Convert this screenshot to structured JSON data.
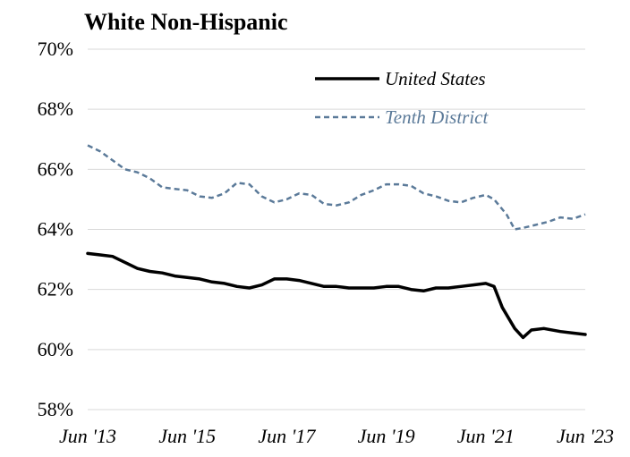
{
  "chart_data": {
    "type": "line",
    "title": "White Non-Hispanic",
    "xlabel": "",
    "ylabel": "",
    "x_ticks": [
      "Jun '13",
      "Jun '15",
      "Jun '17",
      "Jun '19",
      "Jun '21",
      "Jun '23"
    ],
    "x_range": [
      "2013-06",
      "2023-06"
    ],
    "ylim": [
      58,
      70
    ],
    "y_ticks": [
      58,
      60,
      62,
      64,
      66,
      68,
      70
    ],
    "y_tick_labels": [
      "58%",
      "60%",
      "62%",
      "64%",
      "66%",
      "68%",
      "70%"
    ],
    "grid": true,
    "legend_position": "top-right",
    "series": [
      {
        "name": "United States",
        "color": "#000000",
        "style": "solid",
        "points": [
          [
            "2013-06",
            63.2
          ],
          [
            "2013-09",
            63.15
          ],
          [
            "2013-12",
            63.1
          ],
          [
            "2014-03",
            62.9
          ],
          [
            "2014-06",
            62.7
          ],
          [
            "2014-09",
            62.6
          ],
          [
            "2014-12",
            62.55
          ],
          [
            "2015-03",
            62.45
          ],
          [
            "2015-06",
            62.4
          ],
          [
            "2015-09",
            62.35
          ],
          [
            "2015-12",
            62.25
          ],
          [
            "2016-03",
            62.2
          ],
          [
            "2016-06",
            62.1
          ],
          [
            "2016-09",
            62.05
          ],
          [
            "2016-12",
            62.15
          ],
          [
            "2017-03",
            62.35
          ],
          [
            "2017-06",
            62.35
          ],
          [
            "2017-09",
            62.3
          ],
          [
            "2017-12",
            62.2
          ],
          [
            "2018-03",
            62.1
          ],
          [
            "2018-06",
            62.1
          ],
          [
            "2018-09",
            62.05
          ],
          [
            "2018-12",
            62.05
          ],
          [
            "2019-03",
            62.05
          ],
          [
            "2019-06",
            62.1
          ],
          [
            "2019-09",
            62.1
          ],
          [
            "2019-12",
            62.0
          ],
          [
            "2020-03",
            61.95
          ],
          [
            "2020-06",
            62.05
          ],
          [
            "2020-09",
            62.05
          ],
          [
            "2020-12",
            62.1
          ],
          [
            "2021-03",
            62.15
          ],
          [
            "2021-06",
            62.2
          ],
          [
            "2021-08",
            62.1
          ],
          [
            "2021-10",
            61.4
          ],
          [
            "2022-01",
            60.7
          ],
          [
            "2022-03",
            60.4
          ],
          [
            "2022-05",
            60.65
          ],
          [
            "2022-08",
            60.7
          ],
          [
            "2022-12",
            60.6
          ],
          [
            "2023-03",
            60.55
          ],
          [
            "2023-06",
            60.5
          ]
        ]
      },
      {
        "name": "Tenth District",
        "color": "#5b7a99",
        "style": "dashed",
        "points": [
          [
            "2013-06",
            66.8
          ],
          [
            "2013-09",
            66.6
          ],
          [
            "2013-12",
            66.3
          ],
          [
            "2014-03",
            66.0
          ],
          [
            "2014-06",
            65.9
          ],
          [
            "2014-09",
            65.7
          ],
          [
            "2014-12",
            65.4
          ],
          [
            "2015-03",
            65.35
          ],
          [
            "2015-06",
            65.3
          ],
          [
            "2015-09",
            65.1
          ],
          [
            "2015-12",
            65.05
          ],
          [
            "2016-03",
            65.2
          ],
          [
            "2016-06",
            65.55
          ],
          [
            "2016-09",
            65.5
          ],
          [
            "2016-12",
            65.1
          ],
          [
            "2017-03",
            64.9
          ],
          [
            "2017-06",
            65.0
          ],
          [
            "2017-09",
            65.2
          ],
          [
            "2017-12",
            65.15
          ],
          [
            "2018-03",
            64.85
          ],
          [
            "2018-06",
            64.8
          ],
          [
            "2018-09",
            64.9
          ],
          [
            "2018-12",
            65.15
          ],
          [
            "2019-03",
            65.3
          ],
          [
            "2019-06",
            65.5
          ],
          [
            "2019-09",
            65.5
          ],
          [
            "2019-12",
            65.45
          ],
          [
            "2020-03",
            65.2
          ],
          [
            "2020-06",
            65.1
          ],
          [
            "2020-09",
            64.95
          ],
          [
            "2020-12",
            64.9
          ],
          [
            "2021-03",
            65.05
          ],
          [
            "2021-06",
            65.15
          ],
          [
            "2021-08",
            65.0
          ],
          [
            "2021-11",
            64.5
          ],
          [
            "2022-01",
            64.0
          ],
          [
            "2022-03",
            64.05
          ],
          [
            "2022-06",
            64.15
          ],
          [
            "2022-09",
            64.25
          ],
          [
            "2022-12",
            64.4
          ],
          [
            "2023-03",
            64.35
          ],
          [
            "2023-06",
            64.5
          ]
        ]
      }
    ]
  }
}
